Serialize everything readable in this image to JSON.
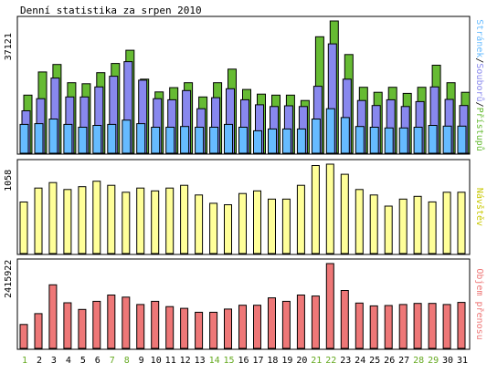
{
  "chart_data": {
    "type": "bar",
    "title": "Denní statistika za srpen 2010",
    "categories": [
      "1",
      "2",
      "3",
      "4",
      "5",
      "6",
      "7",
      "8",
      "9",
      "10",
      "11",
      "12",
      "13",
      "14",
      "15",
      "16",
      "17",
      "18",
      "19",
      "20",
      "21",
      "22",
      "23",
      "24",
      "25",
      "26",
      "27",
      "28",
      "29",
      "30",
      "31"
    ],
    "weekend_days": [
      "1",
      "7",
      "8",
      "14",
      "15",
      "21",
      "22",
      "28",
      "29"
    ],
    "colors": {
      "pristupu": "#66bb33",
      "souboru": "#8888ee",
      "stranek": "#66bbff",
      "navstev": "#ffff99",
      "objem": "#ee7777",
      "weekend_tick": "#66aa22",
      "weekday_tick": "#000000"
    },
    "panels": [
      {
        "id": "requests",
        "ymax": 37121,
        "ymax_label": "37121",
        "legend": [
          {
            "text": "Stránek",
            "color": "#66bbff"
          },
          {
            "text": "/",
            "color": "#000000"
          },
          {
            "text": "Souborů",
            "color": "#8888ee"
          },
          {
            "text": "/",
            "color": "#000000"
          },
          {
            "text": "Přístupů",
            "color": "#66bb33"
          }
        ],
        "series": [
          {
            "name": "Přístupů",
            "color": "#66bb33",
            "values": [
              16300,
              22800,
              24900,
              19800,
              19500,
              22600,
              25200,
              28900,
              20800,
              17200,
              18400,
              19800,
              15800,
              19800,
              23600,
              17900,
              16600,
              16300,
              16300,
              14800,
              32700,
              37121,
              27700,
              18500,
              17100,
              18500,
              16800,
              18500,
              24700,
              19800,
              17100
            ]
          },
          {
            "name": "Souborů",
            "color": "#8888ee",
            "values": [
              11900,
              15300,
              21100,
              15800,
              15800,
              18600,
              21600,
              25700,
              20500,
              15300,
              15000,
              17600,
              12500,
              15600,
              18100,
              15000,
              13600,
              13100,
              13300,
              13100,
              18800,
              30700,
              20800,
              14800,
              13400,
              15000,
              13100,
              14500,
              18600,
              15100,
              13400
            ]
          },
          {
            "name": "Stránek",
            "color": "#66bbff",
            "values": [
              8100,
              8300,
              9600,
              8100,
              7300,
              7800,
              8100,
              9300,
              8300,
              7300,
              7300,
              7500,
              7300,
              7300,
              8100,
              7300,
              6300,
              6800,
              6800,
              6800,
              9600,
              12500,
              10000,
              7500,
              7300,
              7100,
              7100,
              7300,
              7800,
              7600,
              7600
            ]
          }
        ]
      },
      {
        "id": "visits",
        "ymax": 1058,
        "ymax_label": "1058",
        "legend": [
          {
            "text": "Návštěv",
            "color": "#c8c800"
          }
        ],
        "series": [
          {
            "name": "Návštěv",
            "color": "#ffff99",
            "values": [
              610,
              775,
              840,
              758,
              791,
              856,
              807,
              726,
              775,
              742,
              775,
              807,
              693,
              595,
              578,
              710,
              742,
              644,
              644,
              807,
              1042,
              1058,
              938,
              758,
              693,
              561,
              644,
              677,
              611,
              726,
              726
            ]
          }
        ]
      },
      {
        "id": "traffic",
        "ymax": 2415922,
        "ymax_label": "2415922",
        "legend": [
          {
            "text": "Objem přenosu",
            "color": "#ee7777"
          }
        ],
        "series": [
          {
            "name": "Objem přenosu",
            "color": "#ee7777",
            "values": [
              680000,
              990000,
              1810000,
              1300000,
              1110000,
              1340000,
              1520000,
              1460000,
              1250000,
              1340000,
              1190000,
              1140000,
              1030000,
              1030000,
              1120000,
              1230000,
              1230000,
              1440000,
              1340000,
              1520000,
              1490000,
              2415922,
              1650000,
              1290000,
              1210000,
              1220000,
              1250000,
              1280000,
              1280000,
              1250000,
              1310000
            ]
          }
        ]
      }
    ]
  }
}
